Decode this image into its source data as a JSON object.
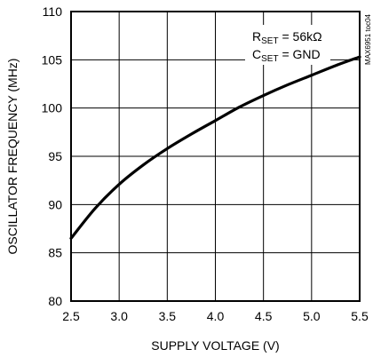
{
  "chart_data": {
    "type": "line",
    "title": "",
    "xlabel": "SUPPLY VOLTAGE (V)",
    "ylabel": "OSCILLATOR FREQUENCY (MHz)",
    "xlim": [
      2.5,
      5.5
    ],
    "ylim": [
      80,
      110
    ],
    "x_ticks": [
      "2.5",
      "3.0",
      "3.5",
      "4.0",
      "4.5",
      "5.0",
      "5.5"
    ],
    "y_ticks": [
      "80",
      "85",
      "90",
      "95",
      "100",
      "105",
      "110"
    ],
    "grid": true,
    "legend": "none",
    "annotations": [
      "R",
      "SET",
      " = 56kΩ",
      "C",
      "SET",
      " = GND"
    ],
    "watermark": "MAX6951 toc04",
    "series": [
      {
        "x": [
          2.5,
          2.75,
          3.0,
          3.25,
          3.5,
          3.75,
          4.0,
          4.25,
          4.5,
          4.75,
          5.0,
          5.25,
          5.5
        ],
        "y": [
          86.5,
          89.6,
          92.1,
          94.1,
          95.8,
          97.3,
          98.7,
          100.1,
          101.3,
          102.4,
          103.4,
          104.4,
          105.3
        ]
      }
    ]
  }
}
